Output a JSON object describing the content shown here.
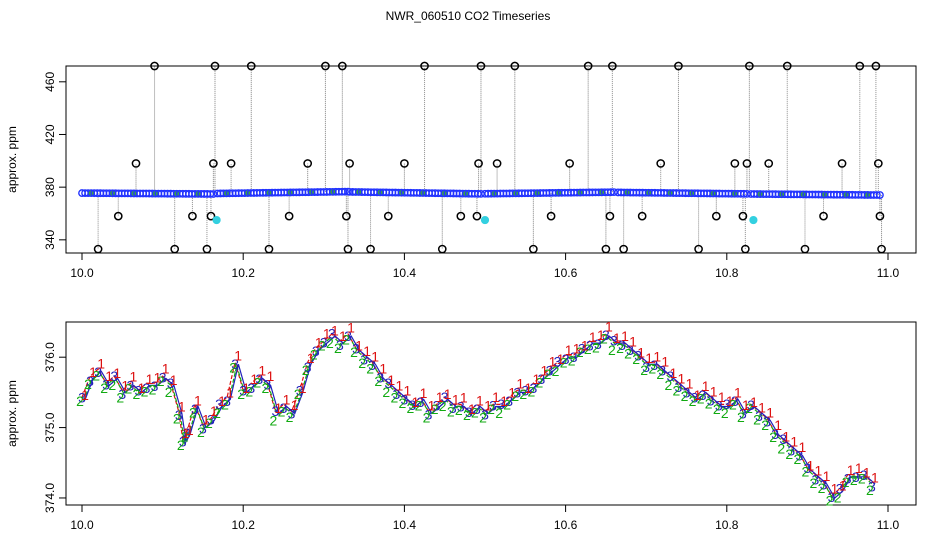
{
  "title": "NWR_060510  CO2 Timeseries",
  "chart_data": [
    {
      "type": "scatter",
      "panel": "top",
      "ylabel": "approx. ppm",
      "xlim": [
        10.0,
        11.0
      ],
      "ylim": [
        330,
        472
      ],
      "xticks": [
        10.0,
        10.2,
        10.4,
        10.6,
        10.8,
        11.0
      ],
      "xtick_labels": [
        "10.0",
        "10.2",
        "10.4",
        "10.6",
        "10.8",
        "11.0"
      ],
      "yticks": [
        340,
        380,
        420,
        460
      ],
      "ytick_labels": [
        "340",
        "380",
        "420",
        "460"
      ],
      "colors": {
        "baseline": "#2233ff",
        "outlier": "#000000",
        "special": "#33d0e0",
        "drop_line": "#9a9a9a"
      },
      "baseline_segments": [
        {
          "x_start": 10.0,
          "x_end": 10.163,
          "y_start": 375.5,
          "y_end": 374.8
        },
        {
          "x_start": 10.168,
          "x_end": 10.33,
          "y_start": 375.2,
          "y_end": 376.6
        },
        {
          "x_start": 10.332,
          "x_end": 10.495,
          "y_start": 376.4,
          "y_end": 374.9
        },
        {
          "x_start": 10.5,
          "x_end": 10.66,
          "y_start": 375.0,
          "y_end": 376.2
        },
        {
          "x_start": 10.665,
          "x_end": 10.825,
          "y_start": 376.0,
          "y_end": 374.9
        },
        {
          "x_start": 10.83,
          "x_end": 10.99,
          "y_start": 374.8,
          "y_end": 374.0
        }
      ],
      "outliers": [
        {
          "x": 10.02,
          "y": 333
        },
        {
          "x": 10.045,
          "y": 358
        },
        {
          "x": 10.067,
          "y": 398
        },
        {
          "x": 10.09,
          "y": 472
        },
        {
          "x": 10.115,
          "y": 333
        },
        {
          "x": 10.137,
          "y": 358
        },
        {
          "x": 10.155,
          "y": 333
        },
        {
          "x": 10.16,
          "y": 358
        },
        {
          "x": 10.163,
          "y": 398
        },
        {
          "x": 10.165,
          "y": 472
        },
        {
          "x": 10.185,
          "y": 398
        },
        {
          "x": 10.21,
          "y": 472
        },
        {
          "x": 10.232,
          "y": 333
        },
        {
          "x": 10.257,
          "y": 358
        },
        {
          "x": 10.28,
          "y": 398
        },
        {
          "x": 10.302,
          "y": 472
        },
        {
          "x": 10.323,
          "y": 472
        },
        {
          "x": 10.328,
          "y": 358
        },
        {
          "x": 10.33,
          "y": 333
        },
        {
          "x": 10.332,
          "y": 398
        },
        {
          "x": 10.358,
          "y": 333
        },
        {
          "x": 10.38,
          "y": 358
        },
        {
          "x": 10.4,
          "y": 398
        },
        {
          "x": 10.425,
          "y": 472
        },
        {
          "x": 10.447,
          "y": 333
        },
        {
          "x": 10.47,
          "y": 358
        },
        {
          "x": 10.49,
          "y": 358
        },
        {
          "x": 10.492,
          "y": 398
        },
        {
          "x": 10.495,
          "y": 472
        },
        {
          "x": 10.515,
          "y": 398
        },
        {
          "x": 10.537,
          "y": 472
        },
        {
          "x": 10.56,
          "y": 333
        },
        {
          "x": 10.582,
          "y": 358
        },
        {
          "x": 10.605,
          "y": 398
        },
        {
          "x": 10.628,
          "y": 472
        },
        {
          "x": 10.65,
          "y": 333
        },
        {
          "x": 10.655,
          "y": 358
        },
        {
          "x": 10.658,
          "y": 472
        },
        {
          "x": 10.672,
          "y": 333
        },
        {
          "x": 10.695,
          "y": 358
        },
        {
          "x": 10.718,
          "y": 398
        },
        {
          "x": 10.74,
          "y": 472
        },
        {
          "x": 10.765,
          "y": 333
        },
        {
          "x": 10.787,
          "y": 358
        },
        {
          "x": 10.81,
          "y": 398
        },
        {
          "x": 10.82,
          "y": 358
        },
        {
          "x": 10.823,
          "y": 333
        },
        {
          "x": 10.825,
          "y": 398
        },
        {
          "x": 10.828,
          "y": 472
        },
        {
          "x": 10.852,
          "y": 398
        },
        {
          "x": 10.875,
          "y": 472
        },
        {
          "x": 10.897,
          "y": 333
        },
        {
          "x": 10.92,
          "y": 358
        },
        {
          "x": 10.943,
          "y": 398
        },
        {
          "x": 10.965,
          "y": 472
        },
        {
          "x": 10.985,
          "y": 472
        },
        {
          "x": 10.988,
          "y": 398
        },
        {
          "x": 10.99,
          "y": 358
        },
        {
          "x": 10.992,
          "y": 333
        }
      ],
      "special_points": [
        {
          "x": 10.167,
          "y": 355
        },
        {
          "x": 10.5,
          "y": 355
        },
        {
          "x": 10.833,
          "y": 355
        }
      ]
    },
    {
      "type": "line",
      "panel": "bottom",
      "ylabel": "approx. ppm",
      "xlim": [
        10.0,
        11.0
      ],
      "ylim": [
        373.9,
        376.5
      ],
      "xticks": [
        10.0,
        10.2,
        10.4,
        10.6,
        10.8,
        11.0
      ],
      "xtick_labels": [
        "10.0",
        "10.2",
        "10.4",
        "10.6",
        "10.8",
        "11.0"
      ],
      "yticks": [
        374.0,
        375.0,
        376.0
      ],
      "ytick_labels": [
        "374.0",
        "375.0",
        "376.0"
      ],
      "series": [
        {
          "name": "1",
          "color": "#dd1111",
          "offset": 0.1
        },
        {
          "name": "2",
          "color": "#11aa11",
          "offset": -0.06
        },
        {
          "name": "3",
          "color": "#2222bb",
          "offset": 0.0
        }
      ],
      "x": [
        10.0,
        10.01,
        10.02,
        10.03,
        10.04,
        10.05,
        10.06,
        10.07,
        10.08,
        10.09,
        10.1,
        10.11,
        10.12,
        10.125,
        10.13,
        10.14,
        10.15,
        10.16,
        10.17,
        10.18,
        10.19,
        10.2,
        10.21,
        10.22,
        10.23,
        10.24,
        10.25,
        10.26,
        10.27,
        10.28,
        10.29,
        10.3,
        10.31,
        10.32,
        10.33,
        10.34,
        10.35,
        10.36,
        10.37,
        10.38,
        10.39,
        10.4,
        10.41,
        10.42,
        10.43,
        10.44,
        10.45,
        10.46,
        10.47,
        10.48,
        10.49,
        10.5,
        10.51,
        10.52,
        10.53,
        10.54,
        10.55,
        10.56,
        10.57,
        10.58,
        10.59,
        10.6,
        10.61,
        10.62,
        10.63,
        10.64,
        10.65,
        10.66,
        10.67,
        10.68,
        10.69,
        10.7,
        10.71,
        10.72,
        10.73,
        10.74,
        10.75,
        10.76,
        10.77,
        10.78,
        10.79,
        10.8,
        10.81,
        10.82,
        10.83,
        10.84,
        10.85,
        10.86,
        10.87,
        10.88,
        10.89,
        10.9,
        10.91,
        10.92,
        10.93,
        10.94,
        10.95,
        10.96,
        10.97,
        10.98
      ],
      "y": [
        375.4,
        375.7,
        375.8,
        375.6,
        375.7,
        375.5,
        375.6,
        375.5,
        375.6,
        375.6,
        375.7,
        375.6,
        375.2,
        374.8,
        374.9,
        375.3,
        375.0,
        375.1,
        375.3,
        375.4,
        375.9,
        375.5,
        375.6,
        375.7,
        375.6,
        375.2,
        375.3,
        375.2,
        375.5,
        375.9,
        376.1,
        376.2,
        376.3,
        376.2,
        376.3,
        376.1,
        376.0,
        375.9,
        375.7,
        375.6,
        375.5,
        375.4,
        375.3,
        375.4,
        375.2,
        375.3,
        375.4,
        375.3,
        375.3,
        375.2,
        375.3,
        375.2,
        375.3,
        375.3,
        375.4,
        375.5,
        375.5,
        375.6,
        375.7,
        375.8,
        375.9,
        376.0,
        376.0,
        376.1,
        376.2,
        376.2,
        376.3,
        376.2,
        376.2,
        376.1,
        376.0,
        375.9,
        375.9,
        375.8,
        375.7,
        375.6,
        375.5,
        375.4,
        375.5,
        375.4,
        375.3,
        375.3,
        375.4,
        375.2,
        375.3,
        375.2,
        375.1,
        374.9,
        374.8,
        374.7,
        374.6,
        374.4,
        374.3,
        374.2,
        374.0,
        374.1,
        374.3,
        374.3,
        374.3,
        374.2
      ]
    }
  ]
}
